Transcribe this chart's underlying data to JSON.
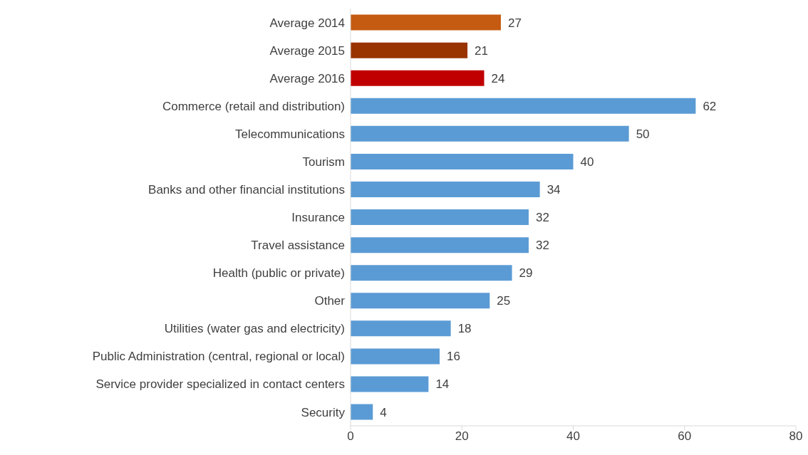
{
  "chart_data": {
    "type": "bar",
    "orientation": "horizontal",
    "categories": [
      "Average 2014",
      "Average 2015",
      "Average 2016",
      "Commerce (retail and distribution)",
      "Telecommunications",
      "Tourism",
      "Banks and other financial institutions",
      "Insurance",
      "Travel assistance",
      "Health (public or private)",
      "Other",
      "Utilities (water gas and electricity)",
      "Public Administration (central, regional or local)",
      "Service provider specialized in contact centers",
      "Security"
    ],
    "values": [
      27,
      21,
      24,
      62,
      50,
      40,
      34,
      32,
      32,
      29,
      25,
      18,
      16,
      14,
      4
    ],
    "colors": [
      "#c55a11",
      "#993300",
      "#c00000",
      "#5b9bd5",
      "#5b9bd5",
      "#5b9bd5",
      "#5b9bd5",
      "#5b9bd5",
      "#5b9bd5",
      "#5b9bd5",
      "#5b9bd5",
      "#5b9bd5",
      "#5b9bd5",
      "#5b9bd5",
      "#5b9bd5"
    ],
    "xlim": [
      0,
      80
    ],
    "xticks": [
      0,
      20,
      40,
      60,
      80
    ],
    "grid": false,
    "legend": false,
    "data_labels": true
  }
}
